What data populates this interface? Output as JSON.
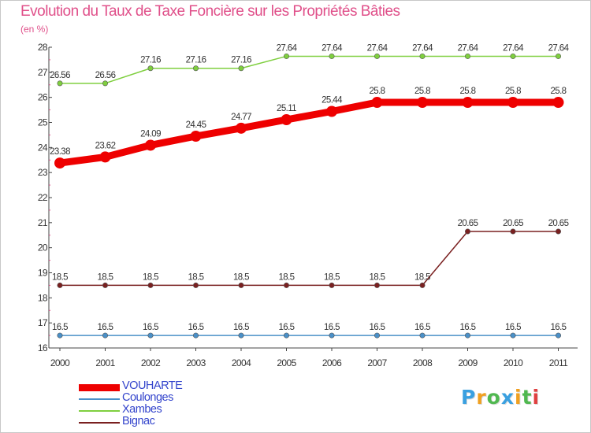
{
  "chart_data": {
    "type": "line",
    "title": "Evolution du Taux de Taxe Foncière sur les Propriétés Bâties",
    "unit": "(en %)",
    "xlabel": "",
    "ylabel": "",
    "ylim": [
      16,
      28
    ],
    "y_ticks": [
      16,
      17,
      18,
      19,
      20,
      21,
      22,
      23,
      24,
      25,
      26,
      27,
      28
    ],
    "categories": [
      "2000",
      "2001",
      "2002",
      "2003",
      "2004",
      "2005",
      "2006",
      "2007",
      "2008",
      "2009",
      "2010",
      "2011"
    ],
    "series": [
      {
        "name": "VOUHARTE",
        "color": "#ee0000",
        "values": [
          23.38,
          23.62,
          24.09,
          24.45,
          24.77,
          25.11,
          25.44,
          25.8,
          25.8,
          25.8,
          25.8,
          25.8
        ],
        "labels": [
          "23.38",
          "23.62",
          "24.09",
          "24.45",
          "24.77",
          "25.11",
          "25.44",
          "25.8",
          "25.8",
          "25.8",
          "25.8",
          "25.8"
        ]
      },
      {
        "name": "Coulonges",
        "color": "#4a90c8",
        "values": [
          16.5,
          16.5,
          16.5,
          16.5,
          16.5,
          16.5,
          16.5,
          16.5,
          16.5,
          16.5,
          16.5,
          16.5
        ],
        "labels": [
          "16.5",
          "16.5",
          "16.5",
          "16.5",
          "16.5",
          "16.5",
          "16.5",
          "16.5",
          "16.5",
          "16.5",
          "16.5",
          "16.5"
        ]
      },
      {
        "name": "Xambes",
        "color": "#7fcf3f",
        "values": [
          26.56,
          26.56,
          27.16,
          27.16,
          27.16,
          27.64,
          27.64,
          27.64,
          27.64,
          27.64,
          27.64,
          27.64
        ],
        "labels": [
          "26.56",
          "26.56",
          "27.16",
          "27.16",
          "27.16",
          "27.64",
          "27.64",
          "27.64",
          "27.64",
          "27.64",
          "27.64",
          "27.64"
        ]
      },
      {
        "name": "Bignac",
        "color": "#7a2020",
        "values": [
          18.5,
          18.5,
          18.5,
          18.5,
          18.5,
          18.5,
          18.5,
          18.5,
          18.5,
          20.65,
          20.65,
          20.65
        ],
        "labels": [
          "18.5",
          "18.5",
          "18.5",
          "18.5",
          "18.5",
          "18.5",
          "18.5",
          "18.5",
          "18.5",
          "20.65",
          "20.65",
          "20.65"
        ]
      }
    ]
  },
  "legend": {
    "items": [
      {
        "label": "VOUHARTE",
        "color": "#ee0000",
        "text_color": "#3344cc"
      },
      {
        "label": "Coulonges",
        "color": "#4a90c8",
        "text_color": "#3344cc"
      },
      {
        "label": "Xambes",
        "color": "#7fcf3f",
        "text_color": "#3344cc"
      },
      {
        "label": "Bignac",
        "color": "#7a2020",
        "text_color": "#3344cc"
      }
    ]
  },
  "logo": {
    "letters": [
      "P",
      "r",
      "o",
      "x",
      "i",
      "t",
      "i"
    ],
    "colors": [
      "#3aa0e0",
      "#f0a020",
      "#50b850",
      "#3aa0e0",
      "#f0a020",
      "#50b850",
      "#e04040"
    ]
  }
}
